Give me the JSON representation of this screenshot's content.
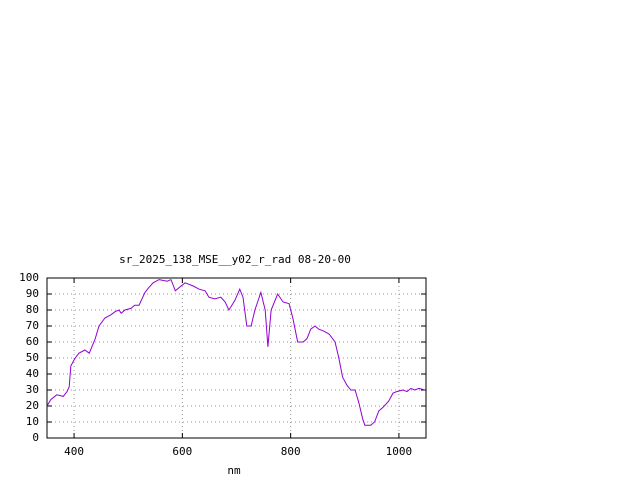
{
  "chart_data": {
    "type": "line",
    "title": "sr_2025_138_MSE__y02_r_rad 08-20-00",
    "xlabel": "nm",
    "x": [
      350,
      357,
      368,
      380,
      387,
      391,
      394,
      402,
      409,
      420,
      428,
      439,
      446,
      457,
      468,
      476,
      483,
      487,
      494,
      505,
      512,
      520,
      531,
      538,
      546,
      557,
      572,
      579,
      587,
      594,
      605,
      620,
      631,
      642,
      649,
      660,
      671,
      679,
      686,
      697,
      706,
      712,
      719,
      727,
      734,
      745,
      753,
      758,
      764,
      776,
      786,
      797,
      804,
      813,
      823,
      830,
      837,
      845,
      852,
      860,
      871,
      882,
      889,
      896,
      904,
      911,
      919,
      926,
      933,
      937,
      948,
      955,
      963,
      970,
      981,
      989,
      996,
      1007,
      1015,
      1022,
      1029,
      1037,
      1048
    ],
    "series": [
      {
        "name": null,
        "color": "#9400d3",
        "values": [
          20,
          24,
          27,
          26,
          29,
          32,
          45,
          50,
          53,
          55,
          53,
          62,
          70,
          75,
          77,
          79,
          80,
          78,
          80,
          81,
          83,
          83,
          91,
          94,
          97,
          99,
          98,
          99,
          92,
          94,
          97,
          95,
          93,
          92,
          88,
          87,
          88,
          85,
          80,
          86,
          93,
          88,
          70,
          70,
          80,
          91,
          80,
          57,
          80,
          90,
          85,
          84,
          75,
          60,
          60,
          62,
          68,
          70,
          68,
          67,
          65,
          60,
          50,
          38,
          33,
          30,
          30,
          22,
          12,
          8,
          8,
          10,
          17,
          19,
          23,
          28,
          29,
          30,
          29,
          31,
          30,
          31,
          30
        ]
      }
    ],
    "xlim": [
      350,
      1050
    ],
    "ylim": [
      0,
      100
    ],
    "xticks": [
      400,
      600,
      800,
      1000
    ],
    "yticks": [
      0,
      10,
      20,
      30,
      40,
      50,
      60,
      70,
      80,
      90,
      100
    ],
    "grid": true
  }
}
